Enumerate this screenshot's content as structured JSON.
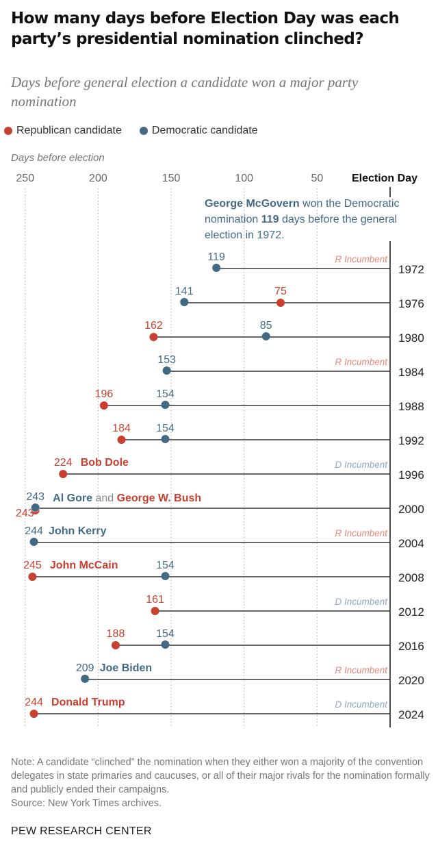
{
  "title": "How many days before Election Day was each party’s presidential nomination clinched?",
  "subtitle": "Days before general election a candidate won a major party nomination",
  "legend": {
    "republican": "Republican candidate",
    "democratic": "Democratic candidate"
  },
  "colors": {
    "republican": "#c8402f",
    "democratic": "#436a85",
    "incumbent_r": "#e8867a",
    "incumbent_d": "#8fa9bd"
  },
  "chart_data": {
    "type": "dot-range",
    "xlabel": "Days before election",
    "xlim": [
      250,
      0
    ],
    "x_ticks": [
      250,
      200,
      150,
      100,
      50
    ],
    "x_zero_label": "Election Day",
    "grid": true,
    "legend_position": "top-left",
    "annotation": {
      "name": "George McGovern",
      "pre": " won the Democratic nomination ",
      "value": "119",
      "post": " days before the general election in 1972."
    },
    "rows": [
      {
        "year": "1972",
        "dem": 119,
        "rep": null,
        "note": "R Incumbent"
      },
      {
        "year": "1976",
        "dem": 141,
        "rep": 75,
        "note": ""
      },
      {
        "year": "1980",
        "dem": 85,
        "rep": 162,
        "note": ""
      },
      {
        "year": "1984",
        "dem": 153,
        "rep": null,
        "note": "R Incumbent"
      },
      {
        "year": "1988",
        "dem": 154,
        "rep": 196,
        "note": ""
      },
      {
        "year": "1992",
        "dem": 154,
        "rep": 184,
        "note": ""
      },
      {
        "year": "1996",
        "dem": null,
        "rep": 224,
        "note": "D Incumbent",
        "rep_name": "Bob Dole"
      },
      {
        "year": "2000",
        "dem": 243,
        "rep": 243,
        "note": "",
        "dem_name": "Al Gore",
        "joiner": "and",
        "rep_name": "George W. Bush"
      },
      {
        "year": "2004",
        "dem": 244,
        "rep": null,
        "note": "R Incumbent",
        "dem_name": "John Kerry"
      },
      {
        "year": "2008",
        "dem": 154,
        "rep": 245,
        "note": "",
        "rep_name": "John McCain"
      },
      {
        "year": "2012",
        "dem": null,
        "rep": 161,
        "note": "D Incumbent"
      },
      {
        "year": "2016",
        "dem": 154,
        "rep": 188,
        "note": ""
      },
      {
        "year": "2020",
        "dem": 209,
        "rep": null,
        "note": "R Incumbent",
        "dem_name": "Joe Biden"
      },
      {
        "year": "2024",
        "dem": null,
        "rep": 244,
        "note": "D Incumbent",
        "rep_name": "Donald Trump"
      }
    ]
  },
  "note": "Note: A candidate “clinched” the nomination when they either won a majority of the convention delegates in state primaries and caucuses, or all of their major rivals for the nomination formally and publicly ended their campaigns.",
  "source": "Source: New York Times archives.",
  "brand": "PEW RESEARCH CENTER"
}
